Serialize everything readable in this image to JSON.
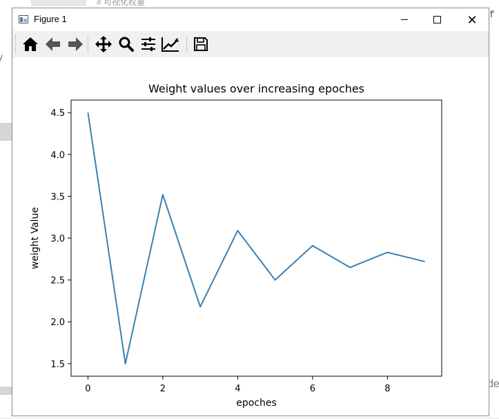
{
  "window": {
    "title": "Figure 1",
    "minimize_icon": "minimize-icon",
    "maximize_icon": "maximize-icon",
    "close_icon": "close-icon",
    "close_glyph": "✕"
  },
  "background": {
    "top_text": "# 可视化权重",
    "right_text_top": "f'",
    "right_text_bottom": "de",
    "left_text": "/"
  },
  "toolbar": {
    "buttons": [
      {
        "name": "home-icon",
        "tooltip": "Home"
      },
      {
        "name": "back-icon",
        "tooltip": "Back"
      },
      {
        "name": "forward-icon",
        "tooltip": "Forward"
      },
      {
        "name": "pan-icon",
        "tooltip": "Pan"
      },
      {
        "name": "zoom-icon",
        "tooltip": "Zoom"
      },
      {
        "name": "subplots-icon",
        "tooltip": "Configure subplots"
      },
      {
        "name": "customize-icon",
        "tooltip": "Edit axis, curve and image parameters"
      },
      {
        "name": "save-icon",
        "tooltip": "Save the figure"
      }
    ]
  },
  "colors": {
    "line": "#3a7fb0",
    "axes": "#000000",
    "window_border": "#8a8a8a",
    "toolbar_bg": "#f0f0f0"
  },
  "chart_data": {
    "type": "line",
    "title": "Weight values over increasing epoches",
    "xlabel": "epoches",
    "ylabel": "weight Value",
    "x": [
      0,
      1,
      2,
      3,
      4,
      5,
      6,
      7,
      8,
      9
    ],
    "series": [
      {
        "values": [
          4.5,
          1.5,
          3.52,
          2.18,
          3.09,
          2.5,
          2.91,
          2.65,
          2.83,
          2.72
        ]
      }
    ],
    "xlim": [
      -0.45,
      9.45
    ],
    "ylim": [
      1.35,
      4.65
    ],
    "xticks": [
      0,
      2,
      4,
      6,
      8
    ],
    "xtick_labels": [
      "0",
      "2",
      "4",
      "6",
      "8"
    ],
    "yticks": [
      1.5,
      2.0,
      2.5,
      3.0,
      3.5,
      4.0,
      4.5
    ],
    "ytick_labels": [
      "1.5",
      "2.0",
      "2.5",
      "3.0",
      "3.5",
      "4.0",
      "4.5"
    ],
    "grid": false,
    "legend": "none"
  }
}
